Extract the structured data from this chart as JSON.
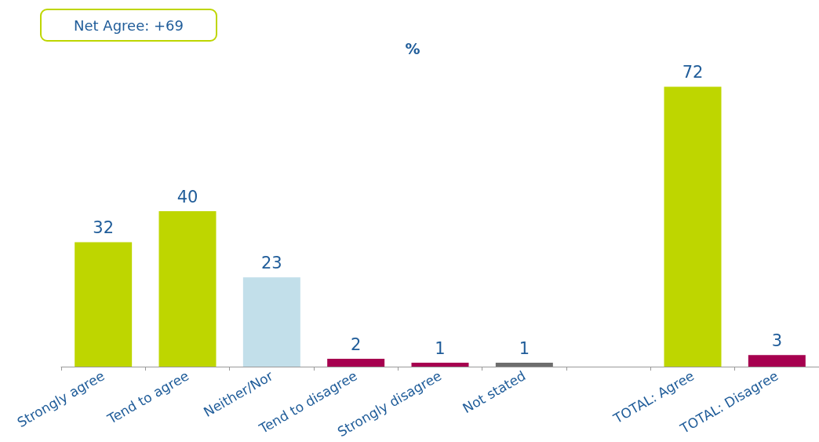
{
  "chart_data": {
    "type": "bar",
    "title": "%",
    "categories": [
      "Strongly agree",
      "Tend to agree",
      "Neither/Nor",
      "Tend to disagree",
      "Strongly disagree",
      "Not stated",
      null,
      "TOTAL: Agree",
      "TOTAL: Disagree"
    ],
    "values": [
      32,
      40,
      23,
      2,
      1,
      1,
      null,
      72,
      3
    ],
    "colors": [
      "#bed600",
      "#bed600",
      "#c2dfea",
      "#a6004f",
      "#a6004f",
      "#6d6d6d",
      "#ffffff",
      "#bed600",
      "#a6004f"
    ],
    "data_labels": true,
    "annotations": [
      "Net Agree: +69"
    ]
  }
}
